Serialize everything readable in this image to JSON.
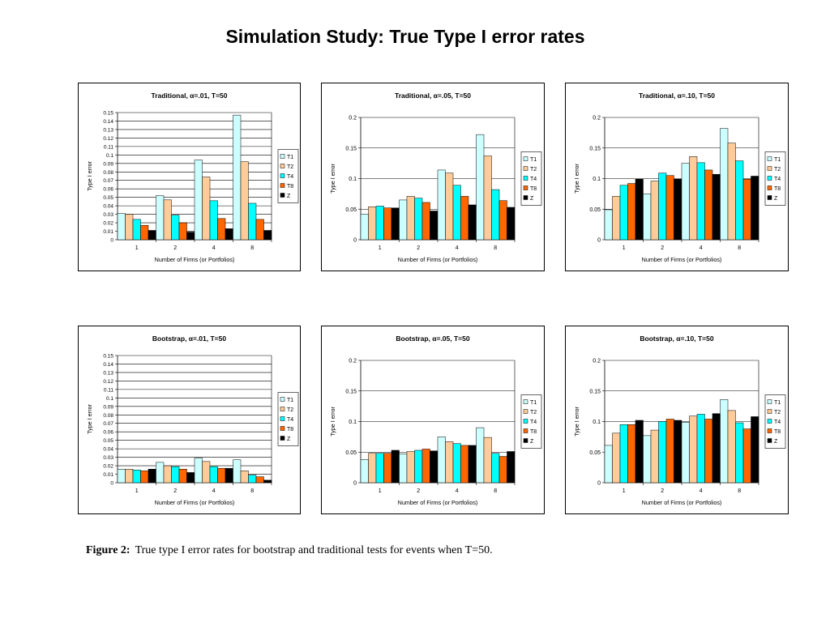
{
  "page_title": "Simulation Study:  True Type I error rates",
  "caption": {
    "label": "Figure 2:",
    "text": "True type I error rates for bootstrap and traditional tests for events when T=50."
  },
  "series_colors": {
    "T1": "#ccffff",
    "T2": "#ffcc99",
    "T4": "#00ffff",
    "T8": "#ff6600",
    "Z": "#000000"
  },
  "chart_data": [
    {
      "type": "bar",
      "title": "Traditional, α=.01, T=50",
      "xlabel": "Number of Firms (or Portfolios)",
      "ylabel": "Type I error",
      "categories": [
        "1",
        "2",
        "4",
        "8"
      ],
      "ylim": [
        0,
        0.15
      ],
      "ystep": 0.01,
      "tick_decimals": 2,
      "legend": "right",
      "series": [
        {
          "name": "T1",
          "values": [
            0.031,
            0.052,
            0.094,
            0.147
          ]
        },
        {
          "name": "T2",
          "values": [
            0.03,
            0.047,
            0.074,
            0.092
          ]
        },
        {
          "name": "T4",
          "values": [
            0.024,
            0.029,
            0.046,
            0.043
          ]
        },
        {
          "name": "T8",
          "values": [
            0.017,
            0.02,
            0.025,
            0.024
          ]
        },
        {
          "name": "Z",
          "values": [
            0.011,
            0.009,
            0.013,
            0.011
          ]
        }
      ]
    },
    {
      "type": "bar",
      "title": "Traditional, α=.05, T=50",
      "xlabel": "Number of Firms (or Portfolios)",
      "ylabel": "Type I error",
      "categories": [
        "1",
        "2",
        "4",
        "8"
      ],
      "ylim": [
        0,
        0.2
      ],
      "ystep": 0.05,
      "tick_decimals": 2,
      "legend": "right",
      "series": [
        {
          "name": "T1",
          "values": [
            0.042,
            0.065,
            0.114,
            0.172
          ]
        },
        {
          "name": "T2",
          "values": [
            0.054,
            0.071,
            0.109,
            0.137
          ]
        },
        {
          "name": "T4",
          "values": [
            0.055,
            0.068,
            0.089,
            0.082
          ]
        },
        {
          "name": "T8",
          "values": [
            0.052,
            0.061,
            0.071,
            0.064
          ]
        },
        {
          "name": "Z",
          "values": [
            0.052,
            0.047,
            0.057,
            0.053
          ]
        }
      ]
    },
    {
      "type": "bar",
      "title": "Traditional, α=.10, T=50",
      "xlabel": "Number of Firms (or Portfolios)",
      "ylabel": "Type I error",
      "categories": [
        "1",
        "2",
        "4",
        "8"
      ],
      "ylim": [
        0,
        0.2
      ],
      "ystep": 0.05,
      "tick_decimals": 2,
      "legend": "right",
      "series": [
        {
          "name": "T1",
          "values": [
            0.049,
            0.075,
            0.125,
            0.182
          ]
        },
        {
          "name": "T2",
          "values": [
            0.071,
            0.096,
            0.136,
            0.158
          ]
        },
        {
          "name": "T4",
          "values": [
            0.089,
            0.109,
            0.126,
            0.129
          ]
        },
        {
          "name": "T8",
          "values": [
            0.092,
            0.105,
            0.114,
            0.099
          ]
        },
        {
          "name": "Z",
          "values": [
            0.099,
            0.099,
            0.107,
            0.104
          ]
        }
      ]
    },
    {
      "type": "bar",
      "title": "Bootstrap, α=.01, T=50",
      "xlabel": "Number of Firms (or Portfolios)",
      "ylabel": "Type I error",
      "categories": [
        "1",
        "2",
        "4",
        "8"
      ],
      "ylim": [
        0,
        0.15
      ],
      "ystep": 0.01,
      "tick_decimals": 2,
      "legend": "right",
      "series": [
        {
          "name": "T1",
          "values": [
            0.016,
            0.024,
            0.029,
            0.027
          ]
        },
        {
          "name": "T2",
          "values": [
            0.016,
            0.02,
            0.025,
            0.014
          ]
        },
        {
          "name": "T4",
          "values": [
            0.015,
            0.019,
            0.019,
            0.009
          ]
        },
        {
          "name": "T8",
          "values": [
            0.014,
            0.016,
            0.017,
            0.007
          ]
        },
        {
          "name": "Z",
          "values": [
            0.016,
            0.012,
            0.017,
            0.003
          ]
        }
      ]
    },
    {
      "type": "bar",
      "title": "Bootstrap, α=.05, T=50",
      "xlabel": "Number of Firms (or Portfolios)",
      "ylabel": "Type I error",
      "categories": [
        "1",
        "2",
        "4",
        "8"
      ],
      "ylim": [
        0,
        0.2
      ],
      "ystep": 0.05,
      "tick_decimals": 2,
      "legend": "right",
      "series": [
        {
          "name": "T1",
          "values": [
            0.038,
            0.047,
            0.075,
            0.09
          ]
        },
        {
          "name": "T2",
          "values": [
            0.048,
            0.051,
            0.067,
            0.074
          ]
        },
        {
          "name": "T4",
          "values": [
            0.048,
            0.053,
            0.064,
            0.048
          ]
        },
        {
          "name": "T8",
          "values": [
            0.048,
            0.055,
            0.061,
            0.043
          ]
        },
        {
          "name": "Z",
          "values": [
            0.053,
            0.052,
            0.061,
            0.051
          ]
        }
      ]
    },
    {
      "type": "bar",
      "title": "Bootstrap, α=.10, T=50",
      "xlabel": "Number of Firms (or Portfolios)",
      "ylabel": "Type I error",
      "categories": [
        "1",
        "2",
        "4",
        "8"
      ],
      "ylim": [
        0,
        0.2
      ],
      "ystep": 0.05,
      "tick_decimals": 2,
      "legend": "right",
      "series": [
        {
          "name": "T1",
          "values": [
            0.061,
            0.077,
            0.099,
            0.136
          ]
        },
        {
          "name": "T2",
          "values": [
            0.081,
            0.086,
            0.109,
            0.118
          ]
        },
        {
          "name": "T4",
          "values": [
            0.095,
            0.1,
            0.112,
            0.098
          ]
        },
        {
          "name": "T8",
          "values": [
            0.095,
            0.104,
            0.104,
            0.088
          ]
        },
        {
          "name": "Z",
          "values": [
            0.102,
            0.102,
            0.113,
            0.108
          ]
        }
      ]
    }
  ]
}
